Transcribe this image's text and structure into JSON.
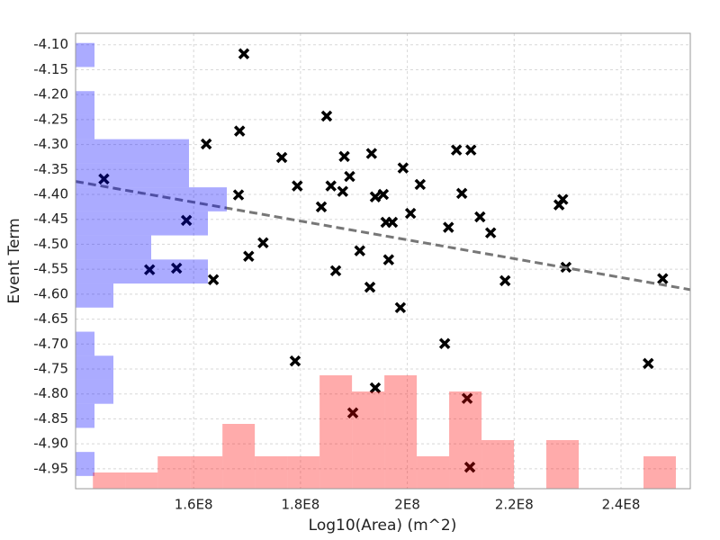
{
  "chart_data": {
    "type": "scatter",
    "x_label": "Log10(Area) (m^2)",
    "y_label": "Event Term",
    "xlim": [
      137900000,
      252970000
    ],
    "ylim": [
      -4.99,
      -4.077
    ],
    "grid": true,
    "xticks": [
      {
        "value": 160000000,
        "label": "1.6E8"
      },
      {
        "value": 180000000,
        "label": "1.8E8"
      },
      {
        "value": 200000000,
        "label": "2E8"
      },
      {
        "value": 220000000,
        "label": "2.2E8"
      },
      {
        "value": 240000000,
        "label": "2.4E8"
      }
    ],
    "yticks": [
      {
        "value": -4.1,
        "label": "-4.10"
      },
      {
        "value": -4.15,
        "label": "-4.15"
      },
      {
        "value": -4.2,
        "label": "-4.20"
      },
      {
        "value": -4.25,
        "label": "-4.25"
      },
      {
        "value": -4.3,
        "label": "-4.30"
      },
      {
        "value": -4.35,
        "label": "-4.35"
      },
      {
        "value": -4.4,
        "label": "-4.40"
      },
      {
        "value": -4.45,
        "label": "-4.45"
      },
      {
        "value": -4.5,
        "label": "-4.50"
      },
      {
        "value": -4.55,
        "label": "-4.55"
      },
      {
        "value": -4.6,
        "label": "-4.60"
      },
      {
        "value": -4.65,
        "label": "-4.65"
      },
      {
        "value": -4.7,
        "label": "-4.70"
      },
      {
        "value": -4.75,
        "label": "-4.75"
      },
      {
        "value": -4.8,
        "label": "-4.80"
      },
      {
        "value": -4.85,
        "label": "-4.85"
      },
      {
        "value": -4.9,
        "label": "-4.90"
      },
      {
        "value": -4.95,
        "label": "-4.95"
      }
    ],
    "color": "#000000",
    "x": [
      143200000,
      158650000,
      151750000,
      156800000,
      162360000,
      163700000,
      168600000,
      169400000,
      168400000,
      170300000,
      173000000,
      176500000,
      179400000,
      179000000,
      183900000,
      184900000,
      185700000,
      186600000,
      187900000,
      188200000,
      189200000,
      191100000,
      189800000,
      193000000,
      193300000,
      194000000,
      194000000,
      195500000,
      196000000,
      196500000,
      197200000,
      198700000,
      199200000,
      200600000,
      202400000,
      207000000,
      207700000,
      209200000,
      210200000,
      211900000,
      211200000,
      211700000,
      213600000,
      215600000,
      218300000,
      228400000,
      229100000,
      229700000,
      245100000,
      247800000
    ],
    "values": [
      -4.369,
      -4.452,
      -4.551,
      -4.548,
      -4.299,
      -4.571,
      -4.273,
      -4.118,
      -4.401,
      -4.524,
      -4.497,
      -4.326,
      -4.383,
      -4.734,
      -4.425,
      -4.243,
      -4.383,
      -4.553,
      -4.394,
      -4.324,
      -4.364,
      -4.513,
      -4.838,
      -4.586,
      -4.318,
      -4.405,
      -4.788,
      -4.4,
      -4.456,
      -4.531,
      -4.456,
      -4.627,
      -4.347,
      -4.438,
      -4.38,
      -4.699,
      -4.466,
      -4.311,
      -4.398,
      -4.311,
      -4.809,
      -4.947,
      -4.445,
      -4.477,
      -4.573,
      -4.421,
      -4.41,
      -4.546,
      -4.739,
      -4.569
    ],
    "regression_line": {
      "color": "#777777",
      "x": [
        137900000,
        252970000
      ],
      "values": [
        -4.374,
        -4.591
      ]
    },
    "y_histogram": {
      "color": "#0000ff",
      "bins": [
        -4.0964,
        -4.1446,
        -4.1929,
        -4.2411,
        -4.2893,
        -4.3375,
        -4.3858,
        -4.434,
        -4.4822,
        -4.5305,
        -4.5787,
        -4.6269,
        -4.6752,
        -4.7234,
        -4.7716,
        -4.8198,
        -4.8681,
        -4.9163,
        -4.9645
      ],
      "counts": [
        1,
        0,
        1,
        1,
        6,
        6,
        8,
        7,
        4,
        7,
        2,
        0,
        1,
        2,
        2,
        1,
        0,
        1
      ]
    },
    "x_histogram": {
      "color": "#ff0000",
      "bins": [
        141140000,
        147200000,
        153270000,
        159330000,
        165390000,
        171450000,
        177520000,
        183580000,
        189640000,
        195710000,
        201770000,
        207830000,
        213900000,
        219960000,
        226020000,
        232080000,
        238150000,
        244210000,
        250270000
      ],
      "counts": [
        1,
        1,
        2,
        2,
        4,
        2,
        2,
        7,
        6,
        7,
        2,
        6,
        3,
        0,
        3,
        0,
        0,
        2
      ]
    }
  }
}
